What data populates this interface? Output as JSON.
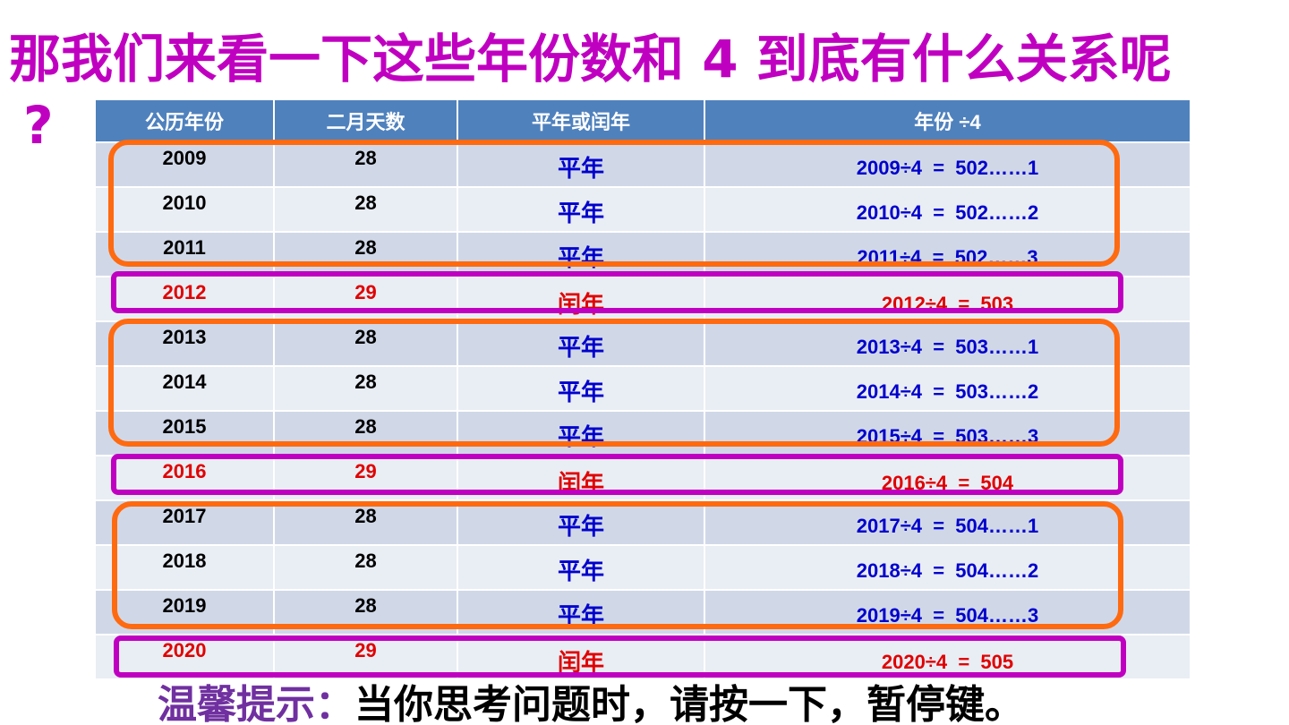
{
  "slide": {
    "title": "那我们来看一下这些年份数和 4 到底有什么关系呢",
    "title_question_mark": "?",
    "title_color": "#c000c0"
  },
  "table": {
    "headers": [
      "公历年份",
      "二月天数",
      "平年或闰年",
      "年份 ÷4"
    ],
    "header_color": "#4f81bd",
    "rows": [
      {
        "year": "2009",
        "feb_days": "28",
        "type": "平年",
        "calc": "2009÷4  =  502……1",
        "leap": false
      },
      {
        "year": "2010",
        "feb_days": "28",
        "type": "平年",
        "calc": "2010÷4  =  502……2",
        "leap": false
      },
      {
        "year": "2011",
        "feb_days": "28",
        "type": "平年",
        "calc": "2011÷4  =  502……3",
        "leap": false
      },
      {
        "year": "2012",
        "feb_days": "29",
        "type": "闰年",
        "calc": "2012÷4  =  503",
        "leap": true
      },
      {
        "year": "2013",
        "feb_days": "28",
        "type": "平年",
        "calc": "2013÷4  =  503……1",
        "leap": false
      },
      {
        "year": "2014",
        "feb_days": "28",
        "type": "平年",
        "calc": "2014÷4  =  503……2",
        "leap": false
      },
      {
        "year": "2015",
        "feb_days": "28",
        "type": "平年",
        "calc": "2015÷4  =  503……3",
        "leap": false
      },
      {
        "year": "2016",
        "feb_days": "29",
        "type": "闰年",
        "calc": "2016÷4  =  504",
        "leap": true
      },
      {
        "year": "2017",
        "feb_days": "28",
        "type": "平年",
        "calc": "2017÷4  =  504……1",
        "leap": false
      },
      {
        "year": "2018",
        "feb_days": "28",
        "type": "平年",
        "calc": "2018÷4  =  504……2",
        "leap": false
      },
      {
        "year": "2019",
        "feb_days": "28",
        "type": "平年",
        "calc": "2019÷4  =  504……3",
        "leap": false
      },
      {
        "year": "2020",
        "feb_days": "29",
        "type": "闰年",
        "calc": "2020÷4  =  505",
        "leap": true
      }
    ],
    "common_year_color": "#0000cc",
    "leap_year_color": "#e00000",
    "group_box_color": "#ff6a10",
    "leap_box_color": "#c000c0"
  },
  "hint": {
    "label": "温馨提示：",
    "text": "当你思考问题时，请按一下，暂停键。",
    "label_color": "#7030a0"
  }
}
